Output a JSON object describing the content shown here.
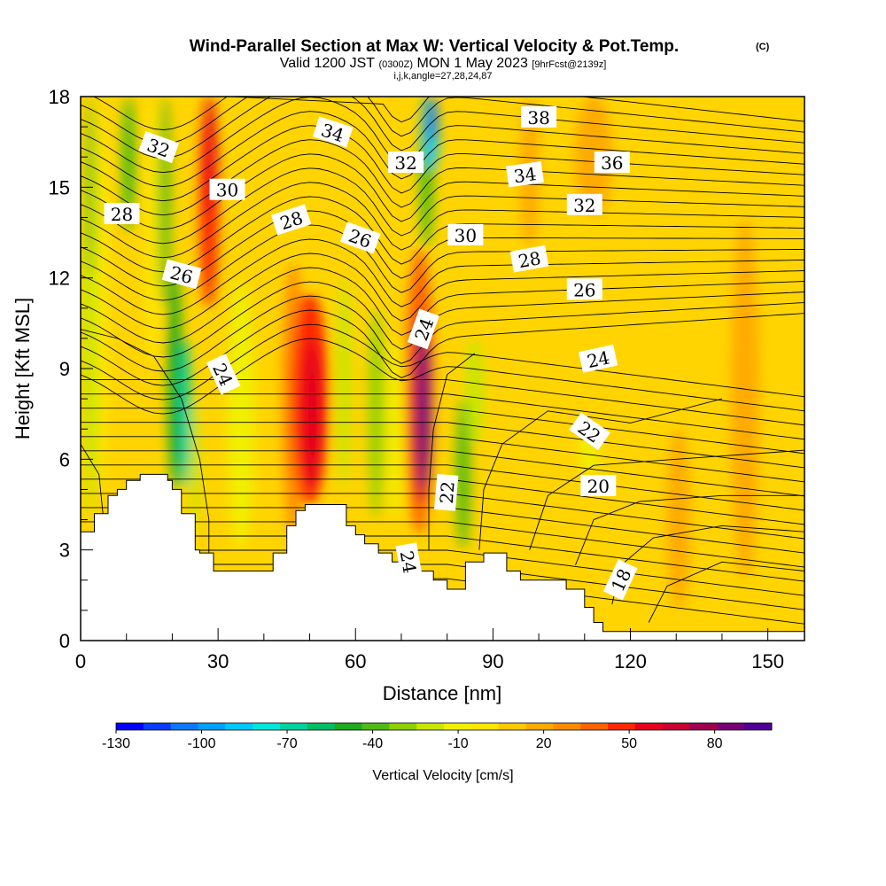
{
  "header": {
    "title": "Wind-Parallel Section at Max W: Vertical Velocity & Pot.Temp.",
    "title_mark": "(C)",
    "valid_prefix": "Valid 1200 JST",
    "valid_utc": "(0300Z)",
    "valid_date": "MON 1 May 2023",
    "forecast_info": "[9hrFcst@2139z]",
    "indices": "i,j,k,angle=27,28,24,87"
  },
  "chart_data": {
    "type": "heatmap",
    "xlabel": "Distance [nm]",
    "ylabel": "Height [Kft MSL]",
    "xlim": [
      0,
      158
    ],
    "ylim": [
      0,
      18
    ],
    "x_ticks": [
      0,
      30,
      60,
      90,
      120,
      150
    ],
    "y_ticks": [
      0,
      3,
      6,
      9,
      12,
      15,
      18
    ],
    "colorbar": {
      "title": "Vertical Velocity [cm/s]",
      "tick_labels": [
        "-130",
        "-100",
        "-70",
        "-40",
        "-10",
        "20",
        "50",
        "80"
      ],
      "tick_values": [
        -130,
        -100,
        -70,
        -40,
        -10,
        20,
        50,
        80
      ],
      "range": [
        -130,
        100
      ],
      "colors": [
        "#0000ff",
        "#0a3cff",
        "#0a78ff",
        "#00a0ff",
        "#00c8ff",
        "#00e6dc",
        "#00d2a0",
        "#00be64",
        "#1eaa1e",
        "#50bb14",
        "#8cd200",
        "#c8e600",
        "#f0f000",
        "#ffe600",
        "#ffc800",
        "#ffaa00",
        "#ff8c00",
        "#ff6400",
        "#ff2800",
        "#e6001e",
        "#c80032",
        "#a00050",
        "#780078",
        "#500096"
      ]
    },
    "terrain_kft": [
      [
        0,
        3.6
      ],
      [
        3,
        3.6
      ],
      [
        3,
        4.2
      ],
      [
        6,
        4.2
      ],
      [
        6,
        4.8
      ],
      [
        8,
        4.8
      ],
      [
        8,
        5.0
      ],
      [
        10,
        5.0
      ],
      [
        10,
        5.3
      ],
      [
        13,
        5.3
      ],
      [
        13,
        5.5
      ],
      [
        19,
        5.5
      ],
      [
        19,
        5.3
      ],
      [
        20,
        5.3
      ],
      [
        20,
        5.0
      ],
      [
        22,
        5.0
      ],
      [
        22,
        4.2
      ],
      [
        25,
        4.2
      ],
      [
        25,
        3.0
      ],
      [
        26,
        3.0
      ],
      [
        26,
        2.9
      ],
      [
        29,
        2.9
      ],
      [
        29,
        2.3
      ],
      [
        42,
        2.3
      ],
      [
        42,
        2.9
      ],
      [
        45,
        2.9
      ],
      [
        45,
        3.8
      ],
      [
        47,
        3.8
      ],
      [
        47,
        4.3
      ],
      [
        49,
        4.3
      ],
      [
        49,
        4.5
      ],
      [
        58,
        4.5
      ],
      [
        58,
        3.8
      ],
      [
        60,
        3.8
      ],
      [
        60,
        3.5
      ],
      [
        62,
        3.5
      ],
      [
        62,
        3.2
      ],
      [
        65,
        3.2
      ],
      [
        65,
        2.9
      ],
      [
        68,
        2.9
      ],
      [
        68,
        2.6
      ],
      [
        71,
        2.6
      ],
      [
        71,
        2.3
      ],
      [
        77,
        2.3
      ],
      [
        77,
        2.0
      ],
      [
        80,
        2.0
      ],
      [
        80,
        1.7
      ],
      [
        84,
        1.7
      ],
      [
        84,
        2.6
      ],
      [
        88,
        2.6
      ],
      [
        88,
        2.9
      ],
      [
        93,
        2.9
      ],
      [
        93,
        2.3
      ],
      [
        96,
        2.3
      ],
      [
        96,
        2.0
      ],
      [
        106,
        2.0
      ],
      [
        106,
        1.7
      ],
      [
        110,
        1.7
      ],
      [
        110,
        1.1
      ],
      [
        112,
        1.1
      ],
      [
        112,
        0.6
      ],
      [
        114,
        0.6
      ],
      [
        114,
        0.3
      ],
      [
        158,
        0.3
      ]
    ],
    "vertical_velocity_bands": [
      {
        "x": 0.5,
        "w": 3.5,
        "y0": 4.0,
        "y1": 18,
        "value": -20
      },
      {
        "x": 1.5,
        "w": 1.2,
        "y0": 12.0,
        "y1": 18,
        "value": -50
      },
      {
        "x": 3.5,
        "w": 2.5,
        "y0": 5.0,
        "y1": 18,
        "value": -5
      },
      {
        "x": 9,
        "w": 3,
        "y0": 13.5,
        "y1": 18,
        "value": -35
      },
      {
        "x": 14,
        "w": 3.5,
        "y0": 9.0,
        "y1": 18,
        "value": 0
      },
      {
        "x": 17,
        "w": 2.5,
        "y0": 11.0,
        "y1": 18,
        "value": -40
      },
      {
        "x": 19,
        "w": 3,
        "y0": 5.0,
        "y1": 12.5,
        "value": -45
      },
      {
        "x": 21.5,
        "w": 2.5,
        "y0": 5.0,
        "y1": 10.0,
        "value": -65
      },
      {
        "x": 26,
        "w": 4,
        "y0": 11.0,
        "y1": 18,
        "value": 50
      },
      {
        "x": 27,
        "w": 2.5,
        "y0": 14.0,
        "y1": 18,
        "value": 60
      },
      {
        "x": 24,
        "w": 2,
        "y0": 3.5,
        "y1": 8.0,
        "value": -20
      },
      {
        "x": 32,
        "w": 6,
        "y0": 3.0,
        "y1": 12.0,
        "value": -8
      },
      {
        "x": 44,
        "w": 5,
        "y0": 3.5,
        "y1": 12.5,
        "value": 30
      },
      {
        "x": 46,
        "w": 8,
        "y0": 4.5,
        "y1": 11.5,
        "value": 45
      },
      {
        "x": 48,
        "w": 5,
        "y0": 5.0,
        "y1": 10.0,
        "value": 55
      },
      {
        "x": 56,
        "w": 3,
        "y0": 5.0,
        "y1": 12.0,
        "value": -20
      },
      {
        "x": 63,
        "w": 3,
        "y0": 4.0,
        "y1": 11.0,
        "value": -30
      },
      {
        "x": 67,
        "w": 3,
        "y0": 4.0,
        "y1": 10.0,
        "value": -10
      },
      {
        "x": 71,
        "w": 6,
        "y0": 3.5,
        "y1": 13.0,
        "value": 40
      },
      {
        "x": 72.5,
        "w": 4,
        "y0": 4.5,
        "y1": 11.0,
        "value": 65
      },
      {
        "x": 73.5,
        "w": 3,
        "y0": 5.0,
        "y1": 10.0,
        "value": 85
      },
      {
        "x": 74,
        "w": 3,
        "y0": 13.0,
        "y1": 18,
        "value": -40
      },
      {
        "x": 75,
        "w": 3,
        "y0": 15.5,
        "y1": 18,
        "value": -90
      },
      {
        "x": 76,
        "w": 1.5,
        "y0": 16.5,
        "y1": 18,
        "value": -120
      },
      {
        "x": 82,
        "w": 3,
        "y0": 3.0,
        "y1": 8.0,
        "value": -40
      },
      {
        "x": 84,
        "w": 4,
        "y0": 6.5,
        "y1": 10.0,
        "value": -20
      },
      {
        "x": 96,
        "w": 4,
        "y0": 13.0,
        "y1": 18,
        "value": 20
      },
      {
        "x": 109,
        "w": 4,
        "y0": 5.5,
        "y1": 7.0,
        "value": -15
      },
      {
        "x": 108,
        "w": 8,
        "y0": 14.0,
        "y1": 18,
        "value": 20
      },
      {
        "x": 128,
        "w": 5,
        "y0": 1.0,
        "y1": 7.0,
        "value": 15
      },
      {
        "x": 142,
        "w": 6,
        "y0": 2.0,
        "y1": 14.0,
        "value": 15
      }
    ],
    "contour_labels": [
      {
        "value": "32",
        "x": 17,
        "y": 16.3,
        "angle": 20
      },
      {
        "value": "34",
        "x": 55,
        "y": 16.8,
        "angle": 18
      },
      {
        "value": "38",
        "x": 100,
        "y": 17.3,
        "angle": 0
      },
      {
        "value": "30",
        "x": 32,
        "y": 14.9,
        "angle": 0
      },
      {
        "value": "32",
        "x": 71,
        "y": 15.8,
        "angle": 0
      },
      {
        "value": "34",
        "x": 97,
        "y": 15.4,
        "angle": -8
      },
      {
        "value": "36",
        "x": 116,
        "y": 15.8,
        "angle": 0
      },
      {
        "value": "28",
        "x": 9,
        "y": 14.1,
        "angle": 0
      },
      {
        "value": "28",
        "x": 46,
        "y": 13.9,
        "angle": -18
      },
      {
        "value": "26",
        "x": 61,
        "y": 13.3,
        "angle": 20
      },
      {
        "value": "30",
        "x": 84,
        "y": 13.4,
        "angle": 0
      },
      {
        "value": "32",
        "x": 110,
        "y": 14.4,
        "angle": 0
      },
      {
        "value": "26",
        "x": 22,
        "y": 12.1,
        "angle": 15
      },
      {
        "value": "28",
        "x": 98,
        "y": 12.6,
        "angle": -10
      },
      {
        "value": "26",
        "x": 110,
        "y": 11.6,
        "angle": 0
      },
      {
        "value": "24",
        "x": 75,
        "y": 10.3,
        "angle": -70
      },
      {
        "value": "24",
        "x": 31,
        "y": 8.8,
        "angle": 65
      },
      {
        "value": "24",
        "x": 113,
        "y": 9.3,
        "angle": -12
      },
      {
        "value": "22",
        "x": 111,
        "y": 6.9,
        "angle": 35
      },
      {
        "value": "22",
        "x": 80,
        "y": 4.9,
        "angle": -85
      },
      {
        "value": "20",
        "x": 113,
        "y": 5.1,
        "angle": 0
      },
      {
        "value": "24",
        "x": 71.5,
        "y": 2.6,
        "angle": 80
      },
      {
        "value": "18",
        "x": 118,
        "y": 2.0,
        "angle": -65
      }
    ]
  }
}
